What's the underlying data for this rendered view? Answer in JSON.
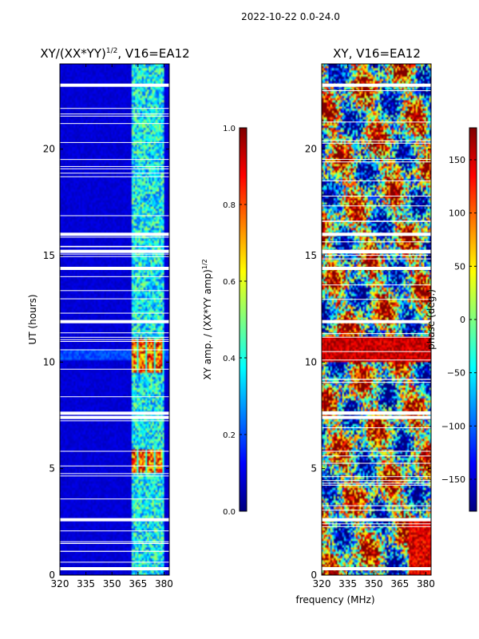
{
  "suptitle": "2022-10-22 0.0-24.0",
  "colors": {
    "jet": [
      "#00007f",
      "#0000ff",
      "#007fff",
      "#00ffff",
      "#7fff7f",
      "#ffff00",
      "#ff7f00",
      "#ff0000",
      "#7f0000"
    ],
    "background": "#ffffff",
    "gap": "#ffffff"
  },
  "chart_data": [
    {
      "type": "heatmap",
      "title_base": "XY/(XX*YY)",
      "title_exp": "1/2",
      "title_suffix": ", V16=EA12",
      "xlabel": "",
      "ylabel": "UT (hours)",
      "xlim": [
        320,
        383
      ],
      "ylim": [
        0,
        24
      ],
      "xticks": [
        320,
        335,
        350,
        365,
        380
      ],
      "yticks": [
        0,
        5,
        10,
        15,
        20
      ],
      "quantity": "normalized XY amplitude",
      "gaps_hours": [
        0.3,
        2.6,
        7.4,
        7.6,
        11.9,
        14.4,
        15.2,
        16.0,
        23.0
      ]
    },
    {
      "type": "heatmap",
      "title": "XY, V16=EA12",
      "xlabel": "frequency (MHz)",
      "ylabel": "",
      "xlim": [
        320,
        383
      ],
      "ylim": [
        0,
        24
      ],
      "xticks": [
        320,
        335,
        350,
        365,
        380
      ],
      "yticks": [
        0,
        5,
        10,
        15,
        20
      ],
      "quantity": "XY phase",
      "gaps_hours": [
        0.3,
        2.6,
        7.4,
        7.6,
        11.9,
        14.4,
        15.2,
        16.0,
        23.0
      ]
    }
  ],
  "colorbars": [
    {
      "label_main": "XY amp. / (XX*YY amp)",
      "label_exp": "1/2",
      "range": [
        0.0,
        1.0
      ],
      "ticks": [
        "0.0",
        "0.2",
        "0.4",
        "0.6",
        "0.8",
        "1.0"
      ],
      "values": [
        0.0,
        0.2,
        0.4,
        0.6,
        0.8,
        1.0
      ]
    },
    {
      "label": "phase (deg.)",
      "range": [
        -180,
        180
      ],
      "ticks": [
        "−150",
        "−100",
        "−50",
        "0",
        "50",
        "100",
        "150"
      ],
      "values": [
        -150,
        -100,
        -50,
        0,
        50,
        100,
        150
      ]
    }
  ]
}
